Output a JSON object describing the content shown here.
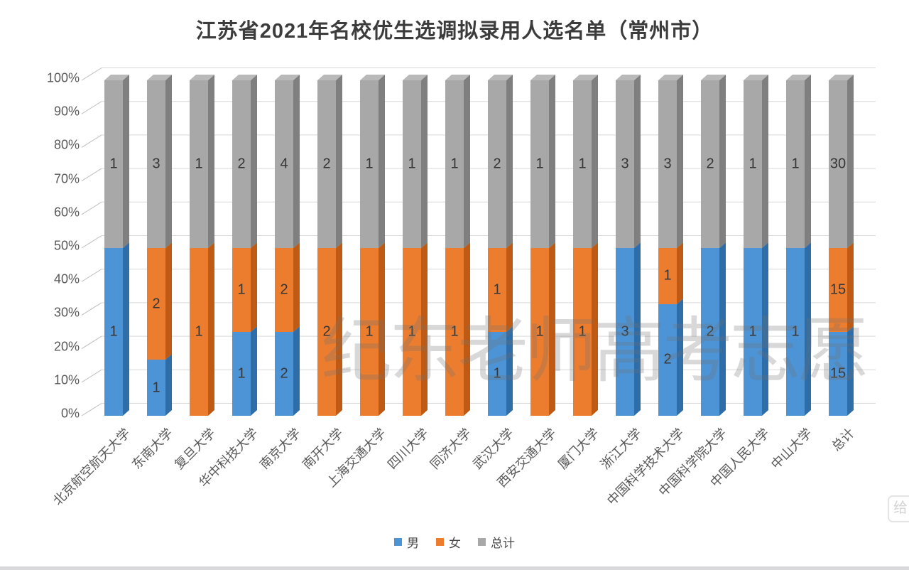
{
  "title": "江苏省2021年名校优生选调拟录用人选名单（常州市）",
  "watermark": "纪东老师高考志愿",
  "corner_badge": "给眼",
  "legend": [
    {
      "label": "男",
      "color": "#4C94D6"
    },
    {
      "label": "女",
      "color": "#EC7D2F"
    },
    {
      "label": "总计",
      "color": "#A8A8A8"
    }
  ],
  "chart_data": {
    "type": "bar",
    "subtype": "100-percent-stacked-3d-column",
    "title": "江苏省2021年名校优生选调拟录用人选名单（常州市）",
    "categories": [
      "北京航空航天大学",
      "东南大学",
      "复旦大学",
      "华中科技大学",
      "南京大学",
      "南开大学",
      "上海交通大学",
      "四川大学",
      "同济大学",
      "武汉大学",
      "西安交通大学",
      "厦门大学",
      "浙江大学",
      "中国科学技术大学",
      "中国科学院大学",
      "中国人民大学",
      "中山大学",
      "总计"
    ],
    "series": [
      {
        "name": "男",
        "color": "#4C94D6",
        "side_color": "#2F6DA8",
        "values": [
          1,
          1,
          0,
          1,
          2,
          0,
          0,
          0,
          0,
          1,
          0,
          0,
          3,
          2,
          2,
          1,
          1,
          15
        ]
      },
      {
        "name": "女",
        "color": "#EC7D2F",
        "side_color": "#BE5A14",
        "values": [
          0,
          2,
          1,
          1,
          2,
          2,
          1,
          1,
          1,
          1,
          1,
          1,
          0,
          1,
          0,
          0,
          0,
          15
        ]
      },
      {
        "name": "总计",
        "color": "#A8A8A8",
        "side_color": "#7F7F7F",
        "top_color": "#B9B9B9",
        "values": [
          1,
          3,
          1,
          2,
          4,
          2,
          1,
          1,
          1,
          2,
          1,
          1,
          3,
          3,
          2,
          1,
          1,
          30
        ]
      }
    ],
    "y_axis": {
      "ticks": [
        "0%",
        "10%",
        "20%",
        "30%",
        "40%",
        "50%",
        "60%",
        "70%",
        "80%",
        "90%",
        "100%"
      ],
      "min": 0,
      "max": 100,
      "unit": "%"
    },
    "value_labels": true,
    "gridlines": true,
    "legend_position": "bottom"
  }
}
